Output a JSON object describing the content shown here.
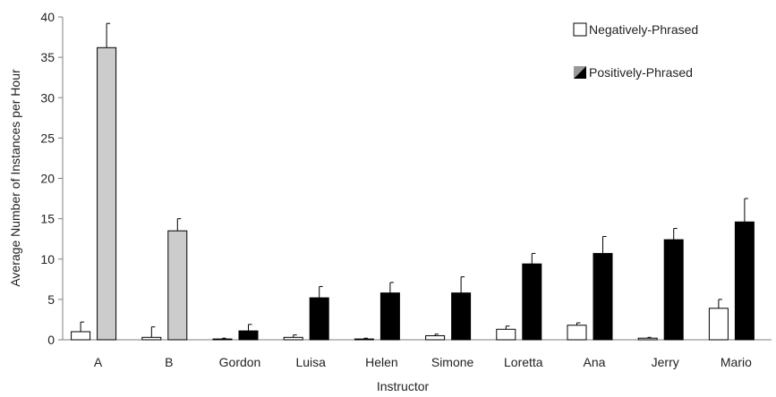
{
  "chart_data": {
    "type": "bar",
    "title": "",
    "xlabel": "Instructor",
    "ylabel": "Average Number of Instances per Hour",
    "ylim": [
      0,
      40
    ],
    "yticks": [
      0,
      5,
      10,
      15,
      20,
      25,
      30,
      35,
      40
    ],
    "grid": false,
    "legend_position": "top-right",
    "categories": [
      "A",
      "B",
      "Gordon",
      "Luisa",
      "Helen",
      "Simone",
      "Loretta",
      "Ana",
      "Jerry",
      "Mario"
    ],
    "series": [
      {
        "name": "Negatively-Phrased",
        "color": "#ffffff",
        "values": [
          1.0,
          0.3,
          0.1,
          0.3,
          0.1,
          0.5,
          1.3,
          1.8,
          0.2,
          3.9
        ],
        "errors": [
          1.2,
          1.3,
          0.1,
          0.3,
          0.1,
          0.2,
          0.4,
          0.3,
          0.1,
          1.1
        ]
      },
      {
        "name": "Positively-Phrased",
        "color": "#000000",
        "values": [
          36.2,
          13.5,
          1.1,
          5.2,
          5.8,
          5.8,
          9.4,
          10.7,
          12.4,
          14.6
        ],
        "errors": [
          3.0,
          1.5,
          0.8,
          1.4,
          1.3,
          2.0,
          1.3,
          2.1,
          1.4,
          2.9
        ]
      }
    ],
    "highlighted_positive_color": "#cccccc",
    "highlighted_categories": [
      "A",
      "B"
    ]
  }
}
